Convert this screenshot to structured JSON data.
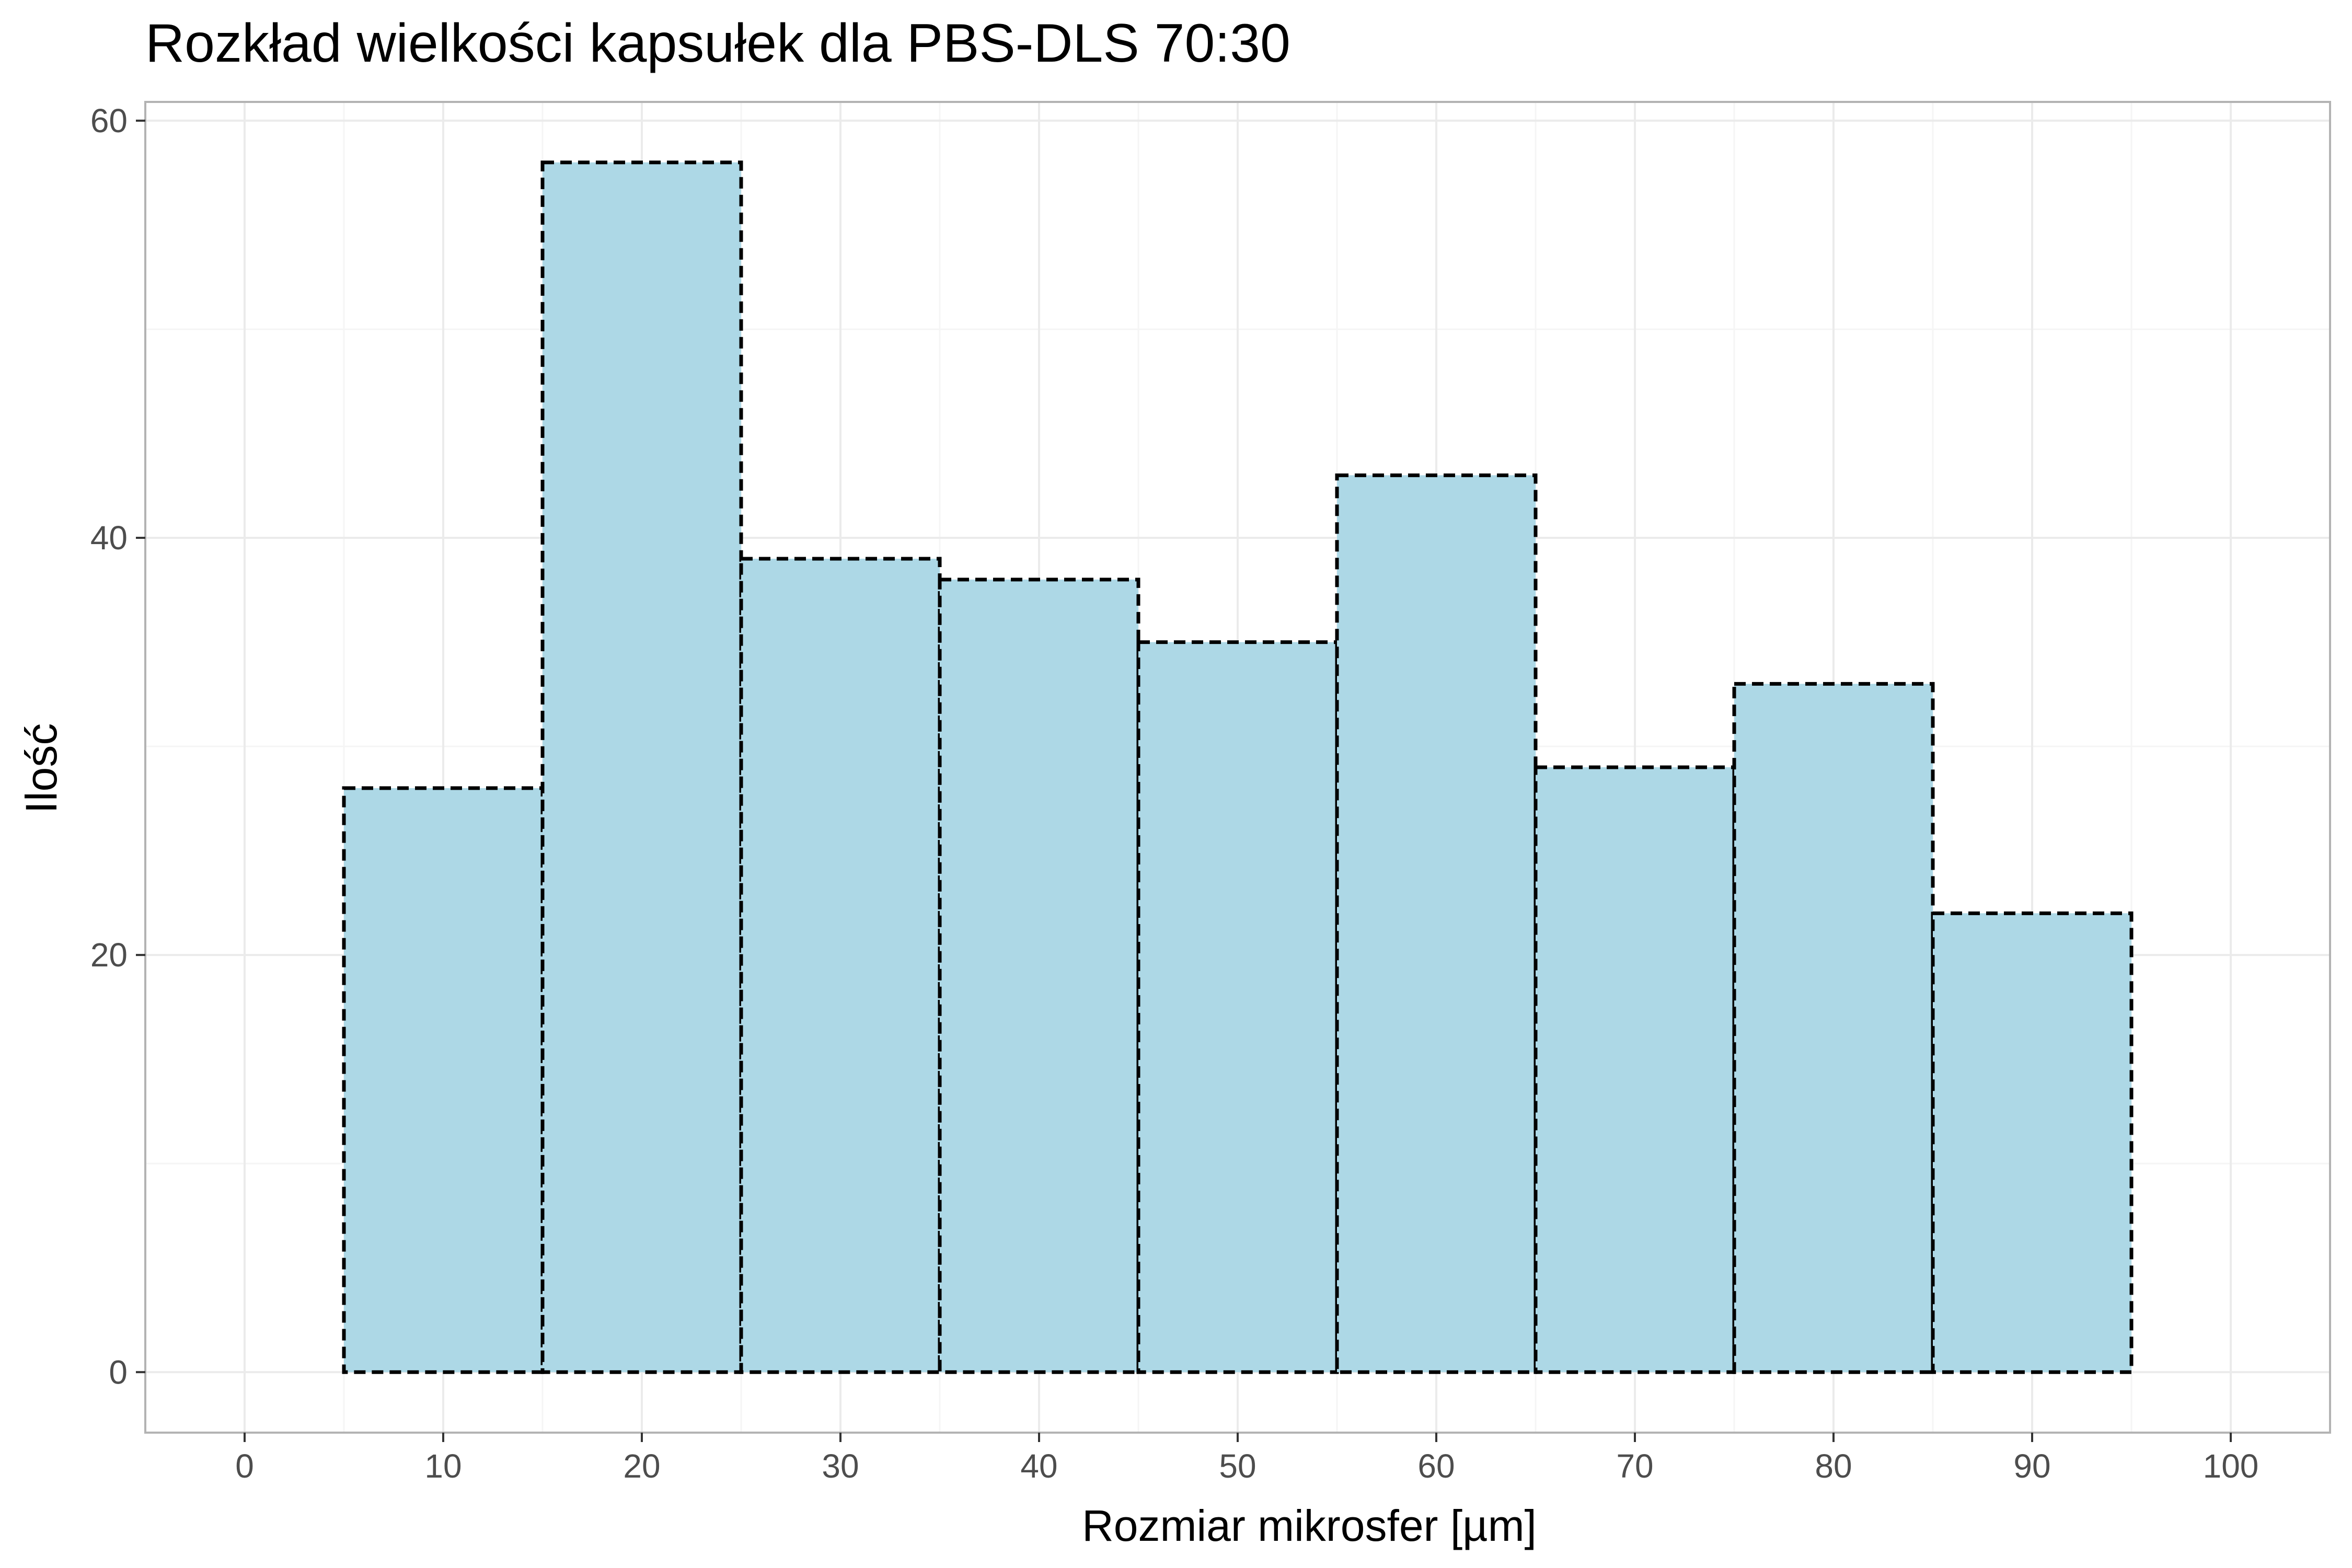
{
  "chart_data": {
    "type": "bar",
    "title": "Rozkład wielkości kapsułek dla PBS-DLS 70:30",
    "xlabel": "Rozmiar mikrosfer [µm]",
    "ylabel": "Ilość",
    "x": [
      10,
      20,
      30,
      40,
      50,
      60,
      70,
      80,
      90
    ],
    "bin_width": 10,
    "values": [
      28,
      58,
      39,
      38,
      35,
      43,
      29,
      33,
      22
    ],
    "xlim": [
      -5,
      105
    ],
    "ylim": [
      -2.9,
      60.9
    ],
    "x_ticks": [
      "0",
      "10",
      "20",
      "30",
      "40",
      "50",
      "60",
      "70",
      "80",
      "90",
      "100"
    ],
    "y_ticks": [
      "0",
      "20",
      "40",
      "60"
    ],
    "grid": true,
    "colors": {
      "bar_fill": "#add8e6",
      "bar_stroke": "#000000",
      "grid_major": "#ebebeb",
      "grid_minor": "#f5f5f5",
      "panel_border": "#b3b3b3",
      "tick_text": "#4d4d4d"
    }
  }
}
